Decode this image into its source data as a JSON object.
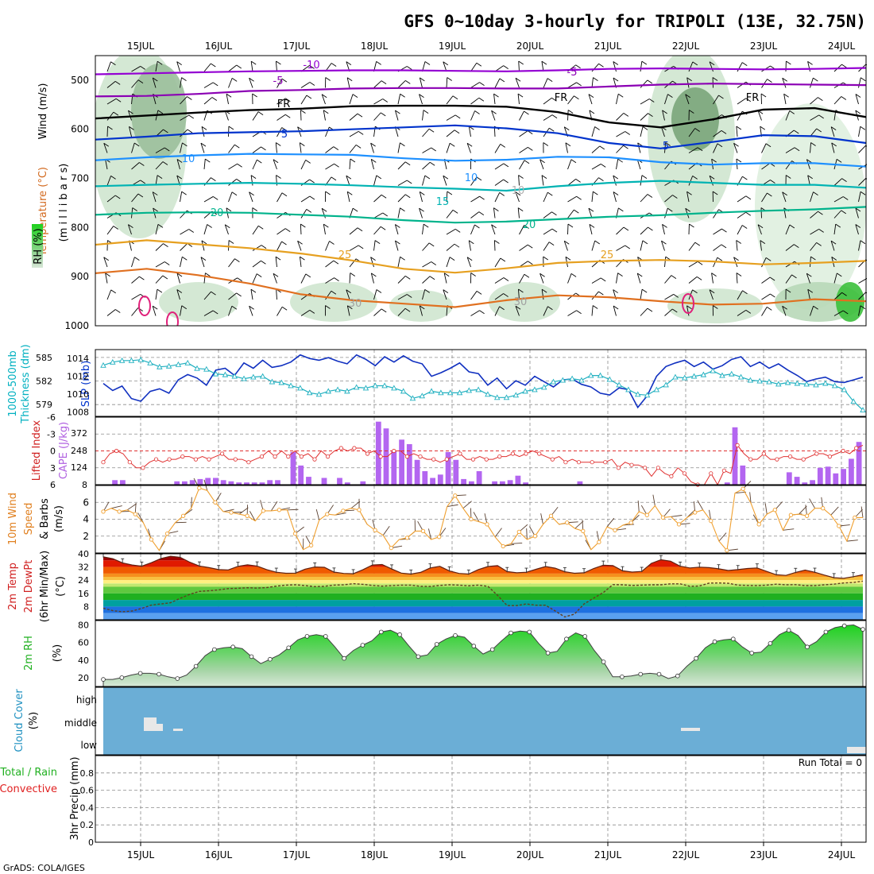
{
  "title": "GFS 0~10day 3-hourly for TRIPOLI (13E, 32.75N)",
  "footer": "GrADS: COLA/IGES",
  "chart_data": {
    "type": "meteogram",
    "dates": [
      "15JUL",
      "16JUL",
      "17JUL",
      "18JUL",
      "19JUL",
      "20JUL",
      "21JUL",
      "22JUL",
      "23JUL",
      "24JUL"
    ],
    "upper_air": {
      "labels": [
        "Temperature (°C)",
        "Wind (m/s)",
        "RH (%)",
        "(m i l l i b a r s)"
      ],
      "yticks": [
        "500",
        "600",
        "700",
        "800",
        "900",
        "1000"
      ],
      "ylim": [
        450,
        1000
      ],
      "isotherms": [
        {
          "label": "-10",
          "color": "#9400d3",
          "p": [
            488,
            486,
            484,
            482,
            481,
            480,
            480,
            481,
            482,
            480,
            477,
            476,
            477,
            478,
            477,
            475
          ]
        },
        {
          "label": "-5",
          "color": "#8b00b4",
          "p": [
            533,
            532,
            528,
            522,
            520,
            517,
            516,
            516,
            517,
            517,
            513,
            509,
            507,
            508,
            509,
            510
          ]
        },
        {
          "label": "FR",
          "color": "#000000",
          "p": [
            578,
            572,
            566,
            561,
            558,
            553,
            552,
            552,
            554,
            565,
            586,
            596,
            580,
            560,
            557,
            575
          ]
        },
        {
          "label": "5",
          "color": "#0033cc",
          "p": [
            621,
            615,
            608,
            606,
            604,
            600,
            596,
            592,
            598,
            608,
            628,
            639,
            626,
            612,
            614,
            628
          ]
        },
        {
          "label": "10",
          "color": "#1e90ff",
          "p": [
            663,
            657,
            653,
            650,
            651,
            652,
            659,
            664,
            662,
            656,
            657,
            667,
            672,
            669,
            669,
            676
          ]
        },
        {
          "label": "15",
          "color": "#00b3b3",
          "p": [
            716,
            713,
            711,
            709,
            711,
            714,
            718,
            721,
            725,
            716,
            709,
            705,
            709,
            713,
            713,
            719
          ]
        },
        {
          "label": "20",
          "color": "#00b38c",
          "p": [
            774,
            770,
            769,
            770,
            774,
            778,
            785,
            790,
            788,
            783,
            778,
            775,
            770,
            766,
            763,
            758
          ]
        },
        {
          "label": "25",
          "color": "#e6a020",
          "p": [
            835,
            826,
            834,
            842,
            853,
            867,
            884,
            892,
            883,
            872,
            868,
            866,
            869,
            875,
            872,
            868
          ]
        },
        {
          "label": "30",
          "color": "#e07020",
          "p": [
            893,
            884,
            897,
            914,
            936,
            948,
            955,
            962,
            948,
            938,
            942,
            950,
            957,
            955,
            946,
            950
          ]
        }
      ],
      "contour_labels": [
        "-10",
        "-5",
        "-5",
        "FR",
        "FR",
        "FR",
        "5",
        "5",
        "10",
        "10",
        "10",
        "15",
        "20",
        "20",
        "25",
        "25",
        "30",
        "30"
      ]
    },
    "slp_thickness": {
      "labels": [
        "1000-500mb",
        "Thickness (dm)",
        "SLP (mb)"
      ],
      "left_ticks": [
        "585",
        "582",
        "579"
      ],
      "right_ticks": [
        "1014",
        "1012",
        "1010",
        "1008"
      ],
      "slp_mb": [
        1011.2,
        1010.4,
        1010.9,
        1009.5,
        1009.2,
        1010.3,
        1010.6,
        1010.1,
        1011.6,
        1012.2,
        1011.8,
        1011.0,
        1012.7,
        1012.9,
        1012.1,
        1013.5,
        1012.9,
        1013.8,
        1013.0,
        1013.2,
        1013.6,
        1014.4,
        1014.0,
        1013.8,
        1014.1,
        1013.7,
        1013.4,
        1014.4,
        1013.9,
        1013.2,
        1014.2,
        1013.6,
        1014.3,
        1013.7,
        1013.4,
        1012.0,
        1012.4,
        1012.9,
        1013.5,
        1012.5,
        1012.3,
        1011.0,
        1011.8,
        1010.6,
        1011.5,
        1011.0,
        1012.0,
        1011.4,
        1010.8,
        1011.6,
        1011.7,
        1011.1,
        1010.8,
        1010.1,
        1009.9,
        1010.7,
        1010.5,
        1008.5,
        1009.8,
        1012.0,
        1013.1,
        1013.5,
        1013.8,
        1013.1,
        1013.6,
        1012.8,
        1013.2,
        1013.9,
        1014.2,
        1013.1,
        1013.6,
        1012.9,
        1013.4,
        1012.7,
        1012.1,
        1011.4,
        1011.7,
        1011.9,
        1011.4,
        1011.3,
        1011.6,
        1011.9
      ],
      "thickness_dm": [
        584.0,
        584.4,
        584.6,
        584.6,
        584.7,
        584.3,
        583.8,
        583.9,
        584.1,
        584.3,
        583.6,
        583.5,
        582.9,
        582.8,
        582.6,
        582.3,
        582.5,
        582.6,
        581.9,
        581.8,
        581.4,
        581.1,
        580.5,
        580.3,
        580.7,
        580.9,
        580.7,
        581.2,
        581.1,
        581.4,
        581.4,
        581.1,
        580.7,
        579.8,
        580.1,
        580.7,
        580.5,
        580.5,
        580.5,
        580.8,
        580.9,
        580.3,
        579.9,
        579.9,
        580.2,
        580.7,
        580.9,
        581.2,
        581.9,
        582.1,
        582.3,
        582.1,
        582.7,
        582.7,
        582.2,
        581.5,
        580.9,
        580.3,
        580.2,
        580.9,
        581.5,
        582.5,
        582.4,
        582.6,
        582.8,
        583.3,
        582.7,
        582.9,
        582.5,
        582.1,
        582.0,
        581.9,
        581.6,
        581.8,
        581.7,
        581.6,
        581.5,
        581.7,
        581.4,
        580.9,
        579.4,
        578.3
      ]
    },
    "cape_li": {
      "labels": [
        "Lifted Index",
        "CAPE (J/kg)"
      ],
      "li_ticks": [
        "-6",
        "-3",
        "0",
        "3",
        "6"
      ],
      "cape_ticks": [
        "372",
        "248",
        "124",
        "8"
      ],
      "cape": [
        2,
        40,
        40,
        0,
        0,
        0,
        0,
        0,
        0,
        30,
        30,
        40,
        50,
        60,
        60,
        40,
        30,
        20,
        20,
        20,
        20,
        40,
        40,
        0,
        290,
        170,
        70,
        0,
        60,
        0,
        60,
        20,
        0,
        30,
        0,
        560,
        500,
        300,
        400,
        360,
        220,
        120,
        60,
        90,
        290,
        220,
        50,
        30,
        120,
        0,
        30,
        30,
        40,
        80,
        20,
        0,
        0,
        0,
        0,
        0,
        0,
        30,
        0,
        0,
        0,
        0,
        0,
        0,
        0,
        0,
        0,
        0,
        0,
        0,
        0,
        0,
        0,
        0,
        0,
        0,
        20,
        510,
        170,
        0,
        0,
        0,
        0,
        0,
        110,
        70,
        20,
        40,
        150,
        160,
        100,
        140,
        230,
        380
      ],
      "lifted_index": [
        2.0,
        0.5,
        0.0,
        0.5,
        2.0,
        3.0,
        3.0,
        2.0,
        1.5,
        2.0,
        1.5,
        1.5,
        1.0,
        1.0,
        1.5,
        1.0,
        1.5,
        1.0,
        0.5,
        1.5,
        1.5,
        1.5,
        2.0,
        1.5,
        1.0,
        0.0,
        1.0,
        0.0,
        1.0,
        0.0,
        1.0,
        0.5,
        1.5,
        0.0,
        1.0,
        0.0,
        -0.5,
        0.0,
        -0.5,
        -0.5,
        0.5,
        0.0,
        1.0,
        1.0,
        0.0,
        0.0,
        1.0,
        0.5,
        1.0,
        1.5,
        1.5,
        2.0,
        1.5,
        1.0,
        0.5,
        1.5,
        1.5,
        1.0,
        1.5,
        1.5,
        1.0,
        1.0,
        0.5,
        1.0,
        0.5,
        0.0,
        0.5,
        1.0,
        1.5,
        1.0,
        2.0,
        1.5,
        2.0,
        2.0,
        2.0,
        2.0,
        2.0,
        1.5,
        3.0,
        2.0,
        2.5,
        2.5,
        3.0,
        4.5,
        3.0,
        4.0,
        4.5,
        3.0,
        4.0,
        5.5,
        6.0,
        6.0,
        4.0,
        6.0,
        3.5,
        4.0,
        -1.0,
        0.5,
        1.5,
        1.5,
        0.5,
        1.5,
        1.5,
        1.0,
        1.0,
        1.5,
        1.5,
        1.0,
        0.5,
        0.5,
        1.0,
        0.5,
        0.0,
        0.5,
        -0.5,
        -1.0
      ]
    },
    "wind10m": {
      "labels": [
        "10m Wind",
        "Speed",
        "& Barbs",
        "(m/s)"
      ],
      "yticks": [
        "6",
        "4",
        "2"
      ],
      "ylim": [
        0,
        8
      ],
      "speed": [
        4.9,
        5.3,
        4.9,
        5.1,
        4.6,
        3.6,
        1.6,
        0.3,
        2.3,
        3.6,
        4.4,
        5.3,
        7.7,
        7.4,
        6.0,
        4.9,
        4.8,
        4.6,
        4.4,
        3.8,
        5.0,
        5.0,
        5.1,
        5.1,
        2.3,
        0.4,
        0.9,
        3.9,
        4.6,
        4.5,
        5.0,
        5.3,
        5.1,
        3.4,
        2.7,
        2.1,
        0.6,
        1.6,
        1.8,
        2.6,
        2.6,
        1.6,
        1.9,
        5.5,
        6.8,
        5.3,
        4.0,
        3.7,
        3.4,
        1.9,
        0.8,
        1.1,
        2.5,
        1.6,
        2.0,
        3.4,
        4.4,
        3.4,
        3.6,
        2.9,
        2.6,
        0.4,
        1.3,
        3.1,
        2.7,
        3.3,
        3.6,
        4.9,
        4.5,
        5.6,
        4.2,
        4.3,
        3.4,
        4.2,
        4.8,
        5.1,
        3.8,
        1.4,
        0.3,
        7.1,
        7.6,
        5.9,
        3.4,
        4.6,
        5.1,
        2.7,
        4.5,
        4.6,
        4.4,
        5.3,
        5.3,
        4.5,
        3.2,
        1.4,
        4.2,
        4.2
      ]
    },
    "temp2m": {
      "labels": [
        "2m Temp",
        "2m DewPt",
        "(6hr Min/Max)",
        "(°C)"
      ],
      "yticks": [
        "40",
        "32",
        "24",
        "16",
        "8"
      ],
      "ylim": [
        0,
        40
      ],
      "temp": [
        38.1,
        37.0,
        34.5,
        33.2,
        32.5,
        34.6,
        37.1,
        38.5,
        37.9,
        34.9,
        32.6,
        31.6,
        30.4,
        30.2,
        32.4,
        33.3,
        32.6,
        30.4,
        28.8,
        28.2,
        28.3,
        30.7,
        32.0,
        31.8,
        28.9,
        28.1,
        27.9,
        30.3,
        33.2,
        33.5,
        30.8,
        28.3,
        27.7,
        28.7,
        31.4,
        32.4,
        29.6,
        28.1,
        27.7,
        30.4,
        32.3,
        32.8,
        29.2,
        28.5,
        28.8,
        30.6,
        32.3,
        31.3,
        29.1,
        28.2,
        28.5,
        31.1,
        33.1,
        32.8,
        29.7,
        28.9,
        29.3,
        34.2,
        36.4,
        35.5,
        32.5,
        31.4,
        31.9,
        31.6,
        30.9,
        29.9,
        30.4,
        31.1,
        31.4,
        29.3,
        27.3,
        26.9,
        28.7,
        30.1,
        28.8,
        27.1,
        25.5,
        25.1,
        26.1,
        27.3
      ],
      "dewpt": [
        7.0,
        5.5,
        4.8,
        5.3,
        6.9,
        8.9,
        9.6,
        10.3,
        13.0,
        15.4,
        17.2,
        17.6,
        18.1,
        18.9,
        19.1,
        19.4,
        19.2,
        19.5,
        20.4,
        21.0,
        21.2,
        20.7,
        20.1,
        20.3,
        21.0,
        21.2,
        21.9,
        21.5,
        20.8,
        20.4,
        20.7,
        21.0,
        21.0,
        20.3,
        20.2,
        20.8,
        21.2,
        21.0,
        20.6,
        21.0,
        20.3,
        14.8,
        8.6,
        8.6,
        9.6,
        8.8,
        8.8,
        5.3,
        1.7,
        3.4,
        9.6,
        13.1,
        16.5,
        21.3,
        21.2,
        20.8,
        21.0,
        21.2,
        21.2,
        21.8,
        21.8,
        20.3,
        20.5,
        22.2,
        22.3,
        22.1,
        21.0,
        20.8,
        20.7,
        21.0,
        21.6,
        21.2,
        21.3,
        20.7,
        20.7,
        21.2,
        21.6,
        22.3,
        22.6,
        23.4
      ]
    },
    "rh2m": {
      "labels": [
        "2m RH",
        "(%)"
      ],
      "yticks": [
        "80",
        "60",
        "40",
        "20"
      ],
      "ylim": [
        10,
        85
      ],
      "rh": [
        18,
        18,
        20,
        23,
        25,
        25,
        24,
        21,
        19,
        23,
        33,
        45,
        52,
        54,
        55,
        53,
        44,
        36,
        41,
        46,
        54,
        63,
        67,
        69,
        67,
        55,
        42,
        51,
        57,
        62,
        72,
        74,
        69,
        56,
        44,
        46,
        58,
        64,
        68,
        66,
        56,
        47,
        52,
        62,
        71,
        73,
        72,
        59,
        48,
        50,
        64,
        71,
        67,
        51,
        38,
        21,
        21,
        22,
        24,
        25,
        24,
        19,
        22,
        33,
        42,
        54,
        61,
        63,
        64,
        55,
        48,
        49,
        59,
        69,
        74,
        68,
        55,
        61,
        72,
        77,
        79,
        80,
        75
      ]
    },
    "cloud_cover": {
      "labels": [
        "Cloud Cover",
        "(%)"
      ],
      "levels": [
        "high",
        "middle",
        "low"
      ]
    },
    "precip": {
      "labels": [
        "Total / Rain",
        "Convective",
        "3hr Precip (mm)"
      ],
      "yticks": [
        "0.8",
        "0.6",
        "0.4",
        "0.2",
        "0"
      ],
      "ylim": [
        0,
        1
      ],
      "run_total_label": "Run Total = 0",
      "values": []
    }
  }
}
